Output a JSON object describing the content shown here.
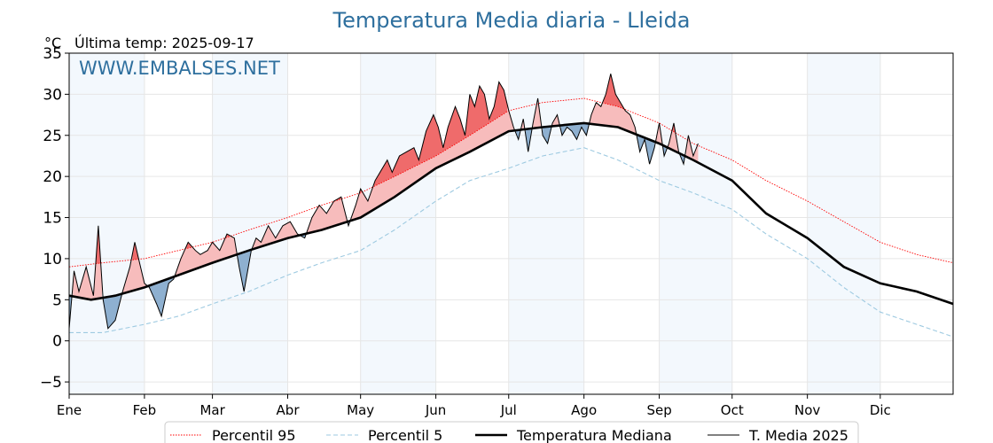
{
  "chart_data": {
    "type": "line",
    "title": "Temperatura Media diaria - Lleida",
    "unit": "°C",
    "subtitle": "Última temp: 2025-09-17",
    "watermark": "WWW.EMBALSES.NET",
    "xlabel": "",
    "ylabel": "",
    "ylim": [
      -6.5,
      35
    ],
    "xlim": [
      1,
      365
    ],
    "yticks": [
      -5,
      0,
      5,
      10,
      15,
      20,
      25,
      30,
      35
    ],
    "ytick_labels": [
      "−5",
      "0",
      "5",
      "10",
      "15",
      "20",
      "25",
      "30",
      "35"
    ],
    "months": [
      "Ene",
      "Feb",
      "Mar",
      "Abr",
      "May",
      "Jun",
      "Jul",
      "Ago",
      "Sep",
      "Oct",
      "Nov",
      "Dic"
    ],
    "month_start_day": [
      1,
      32,
      60,
      91,
      121,
      152,
      182,
      213,
      244,
      274,
      305,
      335
    ],
    "grid": true,
    "legend_position": "bottom-center",
    "last_day_2025": 260,
    "series": [
      {
        "name": "Percentil 95",
        "style": "dotted",
        "color": "#ff0000",
        "x": [
          1,
          15,
          32,
          46,
          60,
          75,
          91,
          105,
          121,
          135,
          152,
          166,
          182,
          196,
          213,
          227,
          244,
          258,
          274,
          288,
          305,
          320,
          335,
          350,
          365
        ],
        "values": [
          9.0,
          9.5,
          10.0,
          11.0,
          12.0,
          13.5,
          15.0,
          16.5,
          18.0,
          20.0,
          22.5,
          25.0,
          28.0,
          29.0,
          29.5,
          28.5,
          26.5,
          24.0,
          22.0,
          19.5,
          17.0,
          14.5,
          12.0,
          10.5,
          9.5
        ]
      },
      {
        "name": "Percentil 5",
        "style": "dashed",
        "color": "#9ecae1",
        "x": [
          1,
          15,
          32,
          46,
          60,
          75,
          91,
          105,
          121,
          135,
          152,
          166,
          182,
          196,
          213,
          227,
          244,
          258,
          274,
          288,
          305,
          320,
          335,
          350,
          365
        ],
        "values": [
          1.0,
          1.0,
          2.0,
          3.0,
          4.5,
          6.0,
          8.0,
          9.5,
          11.0,
          13.5,
          17.0,
          19.5,
          21.0,
          22.5,
          23.5,
          22.0,
          19.5,
          18.0,
          16.0,
          13.0,
          10.0,
          6.5,
          3.5,
          2.0,
          0.5
        ]
      },
      {
        "name": "Temperatura Mediana",
        "style": "solid-bold",
        "color": "#000000",
        "x": [
          1,
          10,
          20,
          32,
          46,
          60,
          75,
          91,
          105,
          121,
          135,
          152,
          166,
          182,
          196,
          213,
          227,
          244,
          258,
          274,
          288,
          305,
          320,
          335,
          350,
          365
        ],
        "values": [
          5.5,
          5.0,
          5.5,
          6.5,
          8.0,
          9.5,
          11.0,
          12.5,
          13.5,
          15.0,
          17.5,
          21.0,
          23.0,
          25.5,
          26.0,
          26.5,
          26.0,
          24.0,
          22.0,
          19.5,
          15.5,
          12.5,
          9.0,
          7.0,
          6.0,
          4.5
        ]
      },
      {
        "name": "T. Media 2025",
        "style": "solid-thin",
        "color": "#000000",
        "x": [
          1,
          3,
          5,
          8,
          11,
          13,
          15,
          17,
          20,
          23,
          26,
          28,
          30,
          32,
          34,
          37,
          39,
          42,
          44,
          47,
          50,
          53,
          55,
          58,
          60,
          63,
          66,
          69,
          71,
          73,
          76,
          78,
          80,
          83,
          86,
          89,
          92,
          95,
          98,
          101,
          104,
          107,
          110,
          113,
          116,
          119,
          121,
          124,
          127,
          129,
          132,
          134,
          137,
          140,
          143,
          145,
          148,
          151,
          153,
          155,
          157,
          160,
          162,
          164,
          166,
          168,
          170,
          172,
          174,
          176,
          178,
          180,
          182,
          184,
          186,
          188,
          190,
          192,
          194,
          196,
          198,
          200,
          202,
          204,
          206,
          208,
          210,
          212,
          214,
          216,
          218,
          220,
          222,
          224,
          226,
          228,
          230,
          232,
          234,
          236,
          238,
          240,
          242,
          244,
          246,
          248,
          250,
          252,
          254,
          256,
          258,
          260
        ],
        "values": [
          1.5,
          8.5,
          6.0,
          9.0,
          5.5,
          14.0,
          5.0,
          1.5,
          2.5,
          6.0,
          9.0,
          12.0,
          9.5,
          7.0,
          6.5,
          4.5,
          3.0,
          7.0,
          7.5,
          10.0,
          12.0,
          11.0,
          10.5,
          11.0,
          12.0,
          11.0,
          13.0,
          12.5,
          9.0,
          6.0,
          11.0,
          12.5,
          12.0,
          14.0,
          12.5,
          14.0,
          14.5,
          13.0,
          12.5,
          15.0,
          16.5,
          15.5,
          17.0,
          17.5,
          14.0,
          16.5,
          18.5,
          17.0,
          19.5,
          20.5,
          22.0,
          20.5,
          22.5,
          23.0,
          23.5,
          22.0,
          25.5,
          27.5,
          26.0,
          23.5,
          26.0,
          28.5,
          27.0,
          25.0,
          30.0,
          28.5,
          31.0,
          30.0,
          27.0,
          28.5,
          31.5,
          30.5,
          28.0,
          26.0,
          24.5,
          27.0,
          23.0,
          26.5,
          29.5,
          25.0,
          24.0,
          26.5,
          27.5,
          25.0,
          26.0,
          25.5,
          24.5,
          26.0,
          25.0,
          27.5,
          29.0,
          28.5,
          30.0,
          32.5,
          30.0,
          29.0,
          28.0,
          27.5,
          26.0,
          23.0,
          24.5,
          21.5,
          23.5,
          26.5,
          22.5,
          24.0,
          26.5,
          23.0,
          21.5,
          25.0,
          22.5,
          24.0
        ]
      }
    ]
  }
}
